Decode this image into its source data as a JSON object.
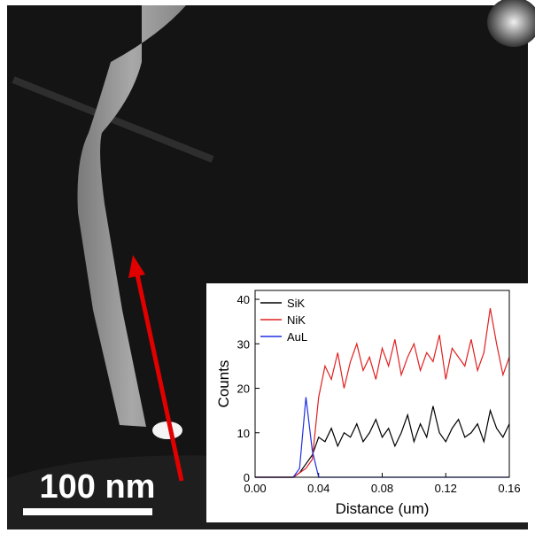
{
  "image": {
    "scale_bar_label": "100 nm"
  },
  "chart_data": {
    "type": "line",
    "x_label": "Distance (um)",
    "y_label": "Counts",
    "x": [
      0,
      0.004,
      0.008,
      0.012,
      0.016,
      0.02,
      0.024,
      0.028,
      0.032,
      0.036,
      0.04,
      0.044,
      0.048,
      0.052,
      0.056,
      0.06,
      0.064,
      0.068,
      0.072,
      0.076,
      0.08,
      0.084,
      0.088,
      0.092,
      0.096,
      0.1,
      0.104,
      0.108,
      0.112,
      0.116,
      0.12,
      0.124,
      0.128,
      0.132,
      0.136,
      0.14,
      0.144,
      0.148,
      0.152,
      0.156,
      0.16
    ],
    "series": [
      {
        "name": "SiK",
        "color": "#000000",
        "values": [
          0,
          0,
          0,
          0,
          0,
          0,
          0,
          1,
          3,
          5,
          9,
          8,
          11,
          7,
          10,
          9,
          12,
          8,
          10,
          13,
          9,
          11,
          7,
          10,
          14,
          8,
          12,
          9,
          16,
          10,
          8,
          11,
          13,
          9,
          10,
          12,
          8,
          15,
          11,
          9,
          12
        ]
      },
      {
        "name": "NiK",
        "color": "#e02020",
        "values": [
          0,
          0,
          0,
          0,
          0,
          0,
          0,
          1,
          2,
          4,
          18,
          25,
          22,
          28,
          20,
          26,
          30,
          24,
          27,
          22,
          29,
          25,
          31,
          23,
          27,
          30,
          24,
          28,
          26,
          32,
          22,
          29,
          27,
          25,
          31,
          24,
          28,
          38,
          30,
          23,
          27
        ]
      },
      {
        "name": "AuL",
        "color": "#1f2fe0",
        "values": [
          0,
          0,
          0,
          0,
          0,
          0,
          0,
          2,
          18,
          6,
          0,
          0,
          0,
          0,
          0,
          0,
          0,
          0,
          0,
          0,
          0,
          0,
          0,
          0,
          0,
          0,
          0,
          0,
          0,
          0,
          0,
          0,
          0,
          0,
          0,
          0,
          0,
          0,
          0,
          0,
          0
        ]
      }
    ],
    "xlim": [
      0,
      0.16
    ],
    "xticks": [
      {
        "value": 0,
        "label": "0.00"
      },
      0.04,
      0.08,
      0.12,
      0.16
    ],
    "ylim": [
      0,
      42
    ],
    "yticks": [
      0,
      10,
      20,
      30,
      40
    ],
    "legend": "top-left"
  }
}
